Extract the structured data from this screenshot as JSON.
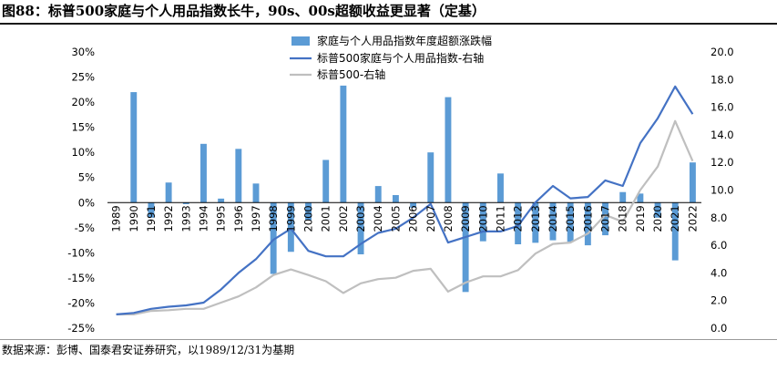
{
  "figure_title": "图88：标普500家庭与个人用品指数长牛，90s、00s超额收益更显著（定基）",
  "source_note": "数据来源：彭博、国泰君安证券研究，以1989/12/31为基期",
  "colors": {
    "bar": "#5b9bd5",
    "index_line": "#4472c4",
    "sp500_line": "#bfbfbf",
    "axis": "#000000"
  },
  "chart_data": {
    "type": "bar+line",
    "categories": [
      "1989",
      "1990",
      "1991",
      "1992",
      "1993",
      "1994",
      "1995",
      "1996",
      "1997",
      "1998",
      "1999",
      "2000",
      "2001",
      "2002",
      "2003",
      "2004",
      "2005",
      "2006",
      "2007",
      "2008",
      "2009",
      "2010",
      "2011",
      "2012",
      "2013",
      "2014",
      "2015",
      "2016",
      "2017",
      "2018",
      "2019",
      "2020",
      "2021",
      "2022"
    ],
    "left_axis": {
      "ylim": [
        -25,
        30
      ],
      "ticks": [
        -25,
        -20,
        -15,
        -10,
        -5,
        0,
        5,
        10,
        15,
        20,
        25,
        30
      ],
      "tick_labels": [
        "-25%",
        "-20%",
        "-15%",
        "-10%",
        "-5%",
        "0%",
        "5%",
        "10%",
        "15%",
        "20%",
        "25%",
        "30%"
      ]
    },
    "right_axis": {
      "ylim": [
        0,
        20
      ],
      "ticks": [
        0,
        2,
        4,
        6,
        8,
        10,
        12,
        14,
        16,
        18,
        20
      ],
      "tick_labels": [
        "0.0",
        "2.0",
        "4.0",
        "6.0",
        "8.0",
        "10.0",
        "12.0",
        "14.0",
        "16.0",
        "18.0",
        "20.0"
      ]
    },
    "series": [
      {
        "name": "家庭与个人用品指数年度超额涨跌幅",
        "type": "bar",
        "axis": "left",
        "values": [
          null,
          22,
          -3,
          4,
          -0.3,
          11.7,
          0.8,
          10.7,
          3.8,
          -14.2,
          -9.8,
          -3.5,
          8.5,
          23.3,
          -10.3,
          3.3,
          1.5,
          -1,
          10,
          21,
          -17.8,
          -7.7,
          5.8,
          -8.3,
          -8,
          -7.5,
          -7.8,
          -8.5,
          -6.5,
          2.1,
          1.8,
          -3,
          -11.5,
          8
        ]
      },
      {
        "name": "标普500家庭与个人用品指数-右轴",
        "type": "line",
        "axis": "right",
        "values": [
          1.0,
          1.1,
          1.4,
          1.55,
          1.65,
          1.85,
          2.8,
          4.0,
          5.0,
          6.4,
          7.2,
          5.6,
          5.2,
          5.2,
          6.1,
          6.9,
          7.2,
          8.0,
          9.0,
          6.2,
          6.6,
          7.0,
          7.0,
          7.4,
          9.1,
          10.3,
          9.4,
          9.5,
          10.7,
          10.3,
          13.4,
          15.2,
          17.5,
          15.5
        ]
      },
      {
        "name": "标普500-右轴",
        "type": "line",
        "axis": "right",
        "values": [
          1.0,
          1.0,
          1.25,
          1.3,
          1.4,
          1.4,
          1.85,
          2.3,
          2.95,
          3.85,
          4.25,
          3.85,
          3.4,
          2.55,
          3.25,
          3.55,
          3.65,
          4.15,
          4.3,
          2.65,
          3.3,
          3.75,
          3.75,
          4.2,
          5.4,
          6.1,
          6.2,
          6.85,
          8.2,
          7.7,
          10.0,
          11.7,
          15.0,
          12.1
        ]
      }
    ]
  }
}
